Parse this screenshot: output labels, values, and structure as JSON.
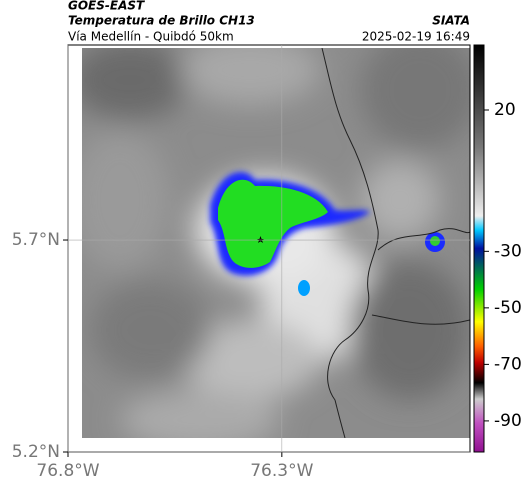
{
  "header": {
    "satellite": "GOES-EAST",
    "product": "Temperatura de Brillo CH13",
    "location": "Vía Medellín - Quibdó 50km",
    "source": "SIATA",
    "timestamp": "2025-02-19 16:49"
  },
  "map": {
    "xlim": [
      -76.8,
      -75.86
    ],
    "ylim": [
      5.2,
      6.16
    ],
    "xticks": [
      {
        "value": -76.8,
        "label": "76.8°W"
      },
      {
        "value": -76.3,
        "label": "76.3°W"
      }
    ],
    "yticks": [
      {
        "value": 5.2,
        "label": "5.2°N"
      },
      {
        "value": 5.7,
        "label": "5.7°N"
      }
    ],
    "grid": true
  },
  "colorbar": {
    "lim": [
      -101,
      43
    ],
    "ticks": [
      20,
      -30,
      -50,
      -70,
      -90
    ]
  }
}
